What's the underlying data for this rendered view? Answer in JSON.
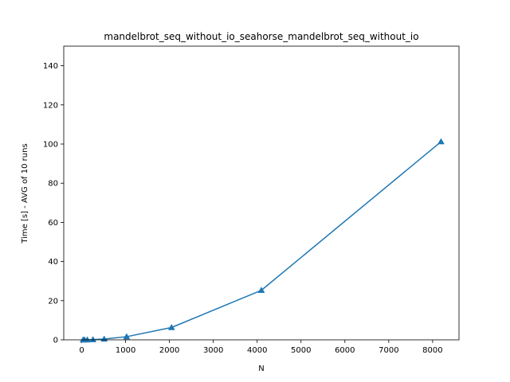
{
  "chart_data": {
    "type": "line",
    "title": "mandelbrot_seq_without_io_seahorse_mandelbrot_seq_without_io",
    "xlabel": "N",
    "ylabel": "Time [s] - AVG of 10 runs",
    "xlim": [
      -409.6,
      8601.6
    ],
    "ylim": [
      0,
      150
    ],
    "xticks": [
      0,
      1000,
      2000,
      3000,
      4000,
      5000,
      6000,
      7000,
      8000
    ],
    "yticks": [
      0,
      20,
      40,
      60,
      80,
      100,
      120,
      140
    ],
    "grid": false,
    "legend": "none",
    "series": [
      {
        "color": "#1f77b4",
        "marker": "triangle-up",
        "x": [
          32,
          64,
          128,
          256,
          512,
          1024,
          2048,
          4096,
          8192
        ],
        "y": [
          0.0,
          0.0,
          0.0,
          0.1,
          0.4,
          1.6,
          6.3,
          25.3,
          101.2
        ]
      }
    ]
  }
}
